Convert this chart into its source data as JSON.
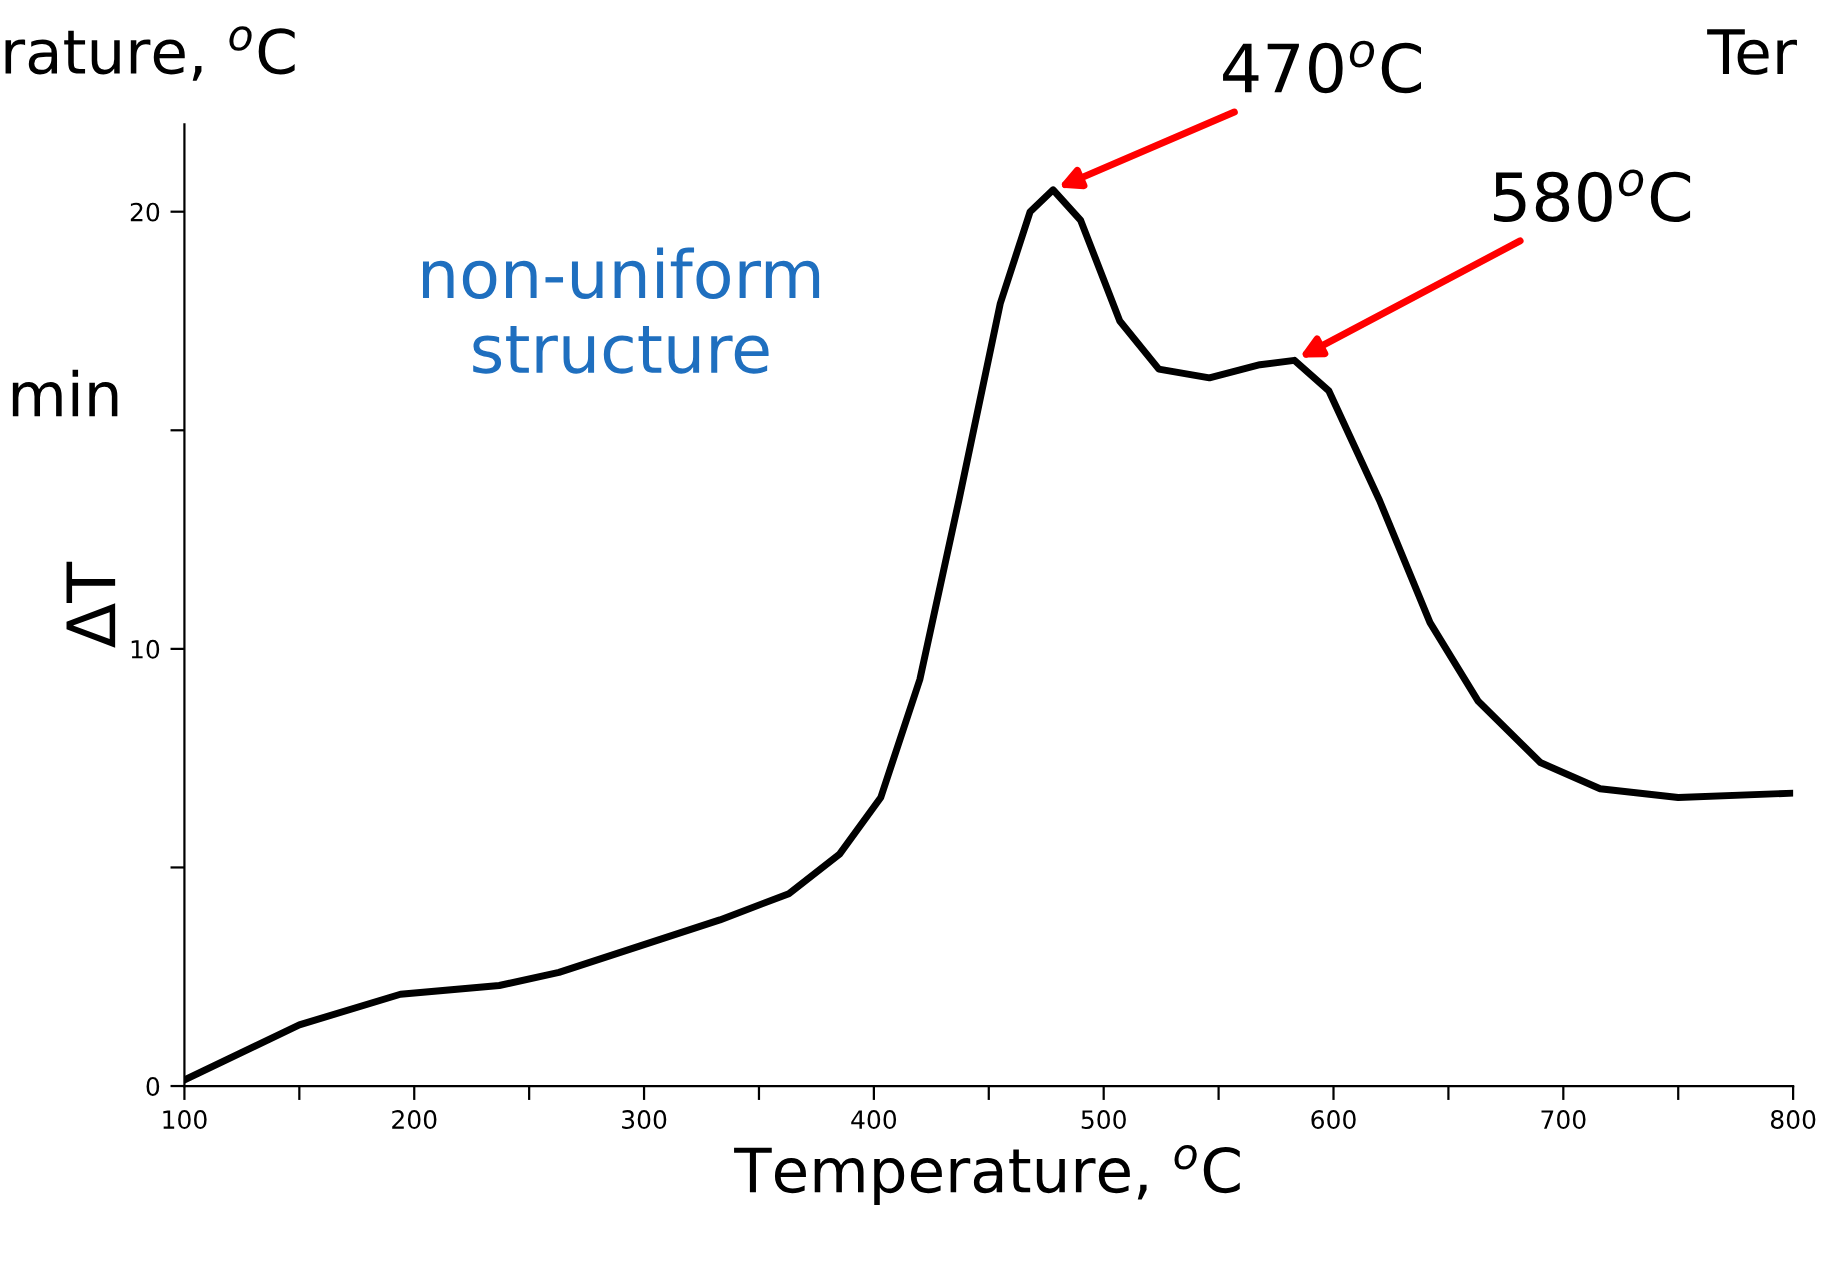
{
  "chart_data": {
    "type": "line",
    "xlabel": "Temperature, $^{o}$C",
    "ylabel": "ΔT",
    "x": [
      100,
      150,
      194,
      237,
      263,
      298,
      333,
      363,
      385,
      403,
      420,
      437,
      455,
      468,
      478,
      490,
      507,
      524,
      546,
      568,
      583,
      598,
      620,
      642,
      663,
      690,
      716,
      750,
      800
    ],
    "series": [
      {
        "color": "#000000",
        "values": [
          0.14,
          1.4,
          2.1,
          2.3,
          2.6,
          3.2,
          3.8,
          4.4,
          5.3,
          6.6,
          9.3,
          13.4,
          17.9,
          20.0,
          20.5,
          19.8,
          17.5,
          16.4,
          16.2,
          16.5,
          16.6,
          15.9,
          13.4,
          10.6,
          8.8,
          7.4,
          6.8,
          6.6,
          6.7
        ]
      }
    ],
    "xlim": [
      100,
      800
    ],
    "ylim": [
      0,
      22
    ],
    "xticks": [
      100,
      {
        "value": 150,
        "label": null
      },
      200,
      {
        "value": 250,
        "label": null
      },
      300,
      {
        "value": 350,
        "label": null
      },
      400,
      {
        "value": 450,
        "label": null
      },
      500,
      {
        "value": 550,
        "label": null
      },
      600,
      {
        "value": 650,
        "label": null
      },
      700,
      {
        "value": 750,
        "label": null
      },
      800
    ],
    "yticks": [
      0,
      {
        "value": 5,
        "label": null
      },
      10,
      {
        "value": 15,
        "label": null
      },
      20
    ],
    "grid": false,
    "legend": false,
    "marker": "none",
    "line_style": "solid",
    "annotations": [
      {
        "text": "470$^{o}$C",
        "x": 478,
        "y": 20.5
      },
      {
        "text": "580$^{o}$C",
        "x": 583,
        "y": 16.6
      },
      "non-uniform\nstructure",
      "rature, $^{o}$C",
      "min",
      "Ter"
    ]
  }
}
